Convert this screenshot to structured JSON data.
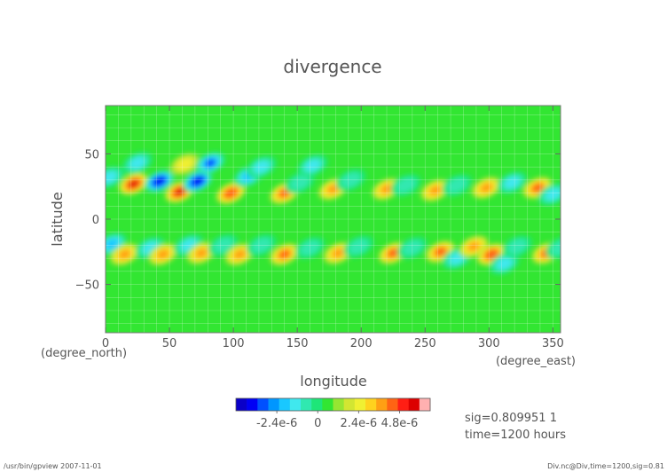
{
  "chart_data": {
    "type": "heatmap",
    "title": "divergence",
    "xlabel": "longitude",
    "ylabel": "latitude",
    "x_unit": "(degree_east)",
    "y_unit": "(degree_north)",
    "xlim": [
      0,
      356
    ],
    "ylim": [
      -87,
      87
    ],
    "x_ticks": [
      0,
      50,
      100,
      150,
      200,
      250,
      300,
      350
    ],
    "y_ticks": [
      -50,
      0,
      50
    ],
    "grid": true,
    "colorbar": {
      "min": -4.8e-06,
      "max": 6.6e-06,
      "step": 6e-07,
      "tick_values": [
        -2.4e-06,
        0,
        2.4e-06,
        4.8e-06
      ],
      "tick_labels": [
        "-2.4e-6",
        "0",
        "2.4e-6",
        "4.8e-6"
      ],
      "colors": [
        "#0a00c8",
        "#0000f5",
        "#0050ff",
        "#0096ff",
        "#19c8ff",
        "#40e8ee",
        "#30e8b0",
        "#1ee678",
        "#32e632",
        "#96e632",
        "#d2e632",
        "#f0f032",
        "#ffd21e",
        "#ffa014",
        "#ff6414",
        "#ff1e14",
        "#dc0000",
        "#ffb0b0"
      ]
    },
    "features": [
      {
        "lon": 3,
        "lat": 32,
        "value": -2e-06
      },
      {
        "lon": 22,
        "lat": 27,
        "value": 4.5e-06
      },
      {
        "lon": 25,
        "lat": 43,
        "value": -1.5e-06
      },
      {
        "lon": 42,
        "lat": 29,
        "value": -4.2e-06
      },
      {
        "lon": 58,
        "lat": 21,
        "value": 5e-06
      },
      {
        "lon": 62,
        "lat": 42,
        "value": 2e-06
      },
      {
        "lon": 72,
        "lat": 29,
        "value": -4e-06
      },
      {
        "lon": 82,
        "lat": 43,
        "value": -3e-06
      },
      {
        "lon": 98,
        "lat": 20,
        "value": 4.2e-06
      },
      {
        "lon": 112,
        "lat": 33,
        "value": -2.2e-06
      },
      {
        "lon": 122,
        "lat": 40,
        "value": -1.8e-06
      },
      {
        "lon": 140,
        "lat": 20,
        "value": 3.6e-06
      },
      {
        "lon": 152,
        "lat": 28,
        "value": -1.4e-06
      },
      {
        "lon": 162,
        "lat": 41,
        "value": -1.6e-06
      },
      {
        "lon": 178,
        "lat": 23,
        "value": 3.2e-06
      },
      {
        "lon": 192,
        "lat": 30,
        "value": -1.2e-06
      },
      {
        "lon": 220,
        "lat": 23,
        "value": 3e-06
      },
      {
        "lon": 235,
        "lat": 26,
        "value": -1.4e-06
      },
      {
        "lon": 258,
        "lat": 22,
        "value": 3e-06
      },
      {
        "lon": 275,
        "lat": 26,
        "value": -1.4e-06
      },
      {
        "lon": 298,
        "lat": 24,
        "value": 3.2e-06
      },
      {
        "lon": 318,
        "lat": 28,
        "value": -1.6e-06
      },
      {
        "lon": 338,
        "lat": 24,
        "value": 3.5e-06
      },
      {
        "lon": 350,
        "lat": 19,
        "value": -1.8e-06
      },
      {
        "lon": 5,
        "lat": -19,
        "value": -2.2e-06
      },
      {
        "lon": 15,
        "lat": -27,
        "value": 3e-06
      },
      {
        "lon": 35,
        "lat": -22,
        "value": -1.8e-06
      },
      {
        "lon": 45,
        "lat": -27,
        "value": 2.8e-06
      },
      {
        "lon": 65,
        "lat": -20,
        "value": -1.6e-06
      },
      {
        "lon": 75,
        "lat": -26,
        "value": 2.8e-06
      },
      {
        "lon": 92,
        "lat": -20,
        "value": -1.4e-06
      },
      {
        "lon": 105,
        "lat": -27,
        "value": 3e-06
      },
      {
        "lon": 122,
        "lat": -20,
        "value": -1.4e-06
      },
      {
        "lon": 140,
        "lat": -27,
        "value": 3.4e-06
      },
      {
        "lon": 160,
        "lat": -22,
        "value": -1.4e-06
      },
      {
        "lon": 182,
        "lat": -26,
        "value": 3e-06
      },
      {
        "lon": 198,
        "lat": -21,
        "value": -1.4e-06
      },
      {
        "lon": 225,
        "lat": -26,
        "value": 3.4e-06
      },
      {
        "lon": 240,
        "lat": -22,
        "value": -1.2e-06
      },
      {
        "lon": 262,
        "lat": -25,
        "value": 3.6e-06
      },
      {
        "lon": 275,
        "lat": -30,
        "value": -1.6e-06
      },
      {
        "lon": 288,
        "lat": -21,
        "value": 2.8e-06
      },
      {
        "lon": 302,
        "lat": -27,
        "value": 4.2e-06
      },
      {
        "lon": 312,
        "lat": -34,
        "value": -1.8e-06
      },
      {
        "lon": 322,
        "lat": -21,
        "value": -1.4e-06
      },
      {
        "lon": 345,
        "lat": -26,
        "value": 3.6e-06
      },
      {
        "lon": 356,
        "lat": -22,
        "value": -1.4e-06
      }
    ]
  },
  "annotations": {
    "sig_line": "sig=0.809951 1",
    "time_line": "time=1200 hours"
  },
  "footer": {
    "left": "/usr/bin/gpview   2007-11-01",
    "right": "Div.nc@Div,time=1200,sig=0.81"
  }
}
